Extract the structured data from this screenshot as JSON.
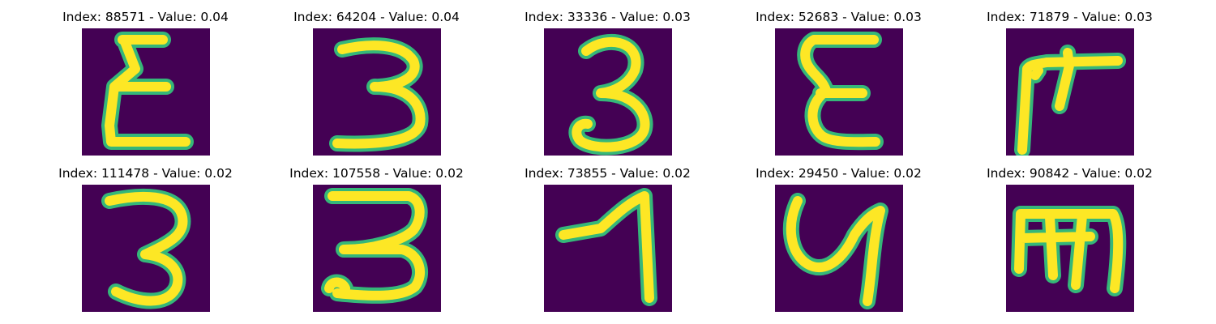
{
  "colors": {
    "background": "#440154",
    "stroke": "#fde725",
    "stroke_edge": "#35b779"
  },
  "panels": [
    {
      "title": "Index: 88571 - Value: 0.04"
    },
    {
      "title": "Index: 64204 - Value: 0.04"
    },
    {
      "title": "Index: 33336 - Value: 0.03"
    },
    {
      "title": "Index: 52683 - Value: 0.03"
    },
    {
      "title": "Index: 71879 - Value: 0.03"
    },
    {
      "title": "Index: 111478 - Value: 0.02"
    },
    {
      "title": "Index: 107558 - Value: 0.02"
    },
    {
      "title": "Index: 73855 - Value: 0.02"
    },
    {
      "title": "Index: 29450 - Value: 0.02"
    },
    {
      "title": "Index: 90842 - Value: 0.02"
    }
  ]
}
